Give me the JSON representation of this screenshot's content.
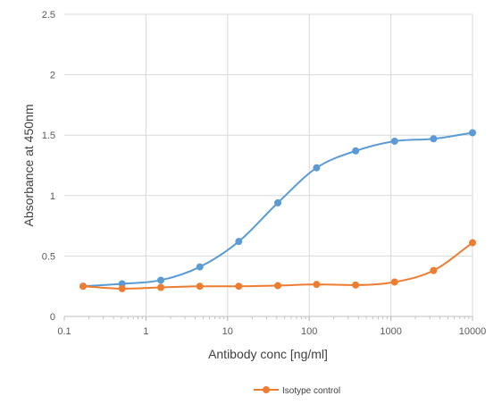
{
  "chart_data": {
    "type": "line",
    "xscale": "log",
    "xlim": [
      0.1,
      10000
    ],
    "ylim": [
      0,
      2.5
    ],
    "xlabel": "Antibody conc [ng/ml]",
    "ylabel": "Absorbance at 450nm",
    "x_ticks": [
      "0.1",
      "1",
      "10",
      "100",
      "1000",
      "10000"
    ],
    "y_ticks": [
      "0",
      "0.5",
      "1",
      "1.5",
      "2",
      "2.5"
    ],
    "grid": true,
    "legend_position": "bottom-center",
    "series": [
      {
        "color": "#5B9BD5",
        "x": [
          0.17,
          0.51,
          1.52,
          4.57,
          13.7,
          41.2,
          123,
          370,
          1111,
          3333,
          10000
        ],
        "y": [
          0.25,
          0.27,
          0.3,
          0.41,
          0.62,
          0.94,
          1.23,
          1.37,
          1.45,
          1.47,
          1.52
        ]
      },
      {
        "name": "Isotype control",
        "color": "#ED7D31",
        "x": [
          0.17,
          0.51,
          1.52,
          4.57,
          13.7,
          41.2,
          123,
          370,
          1111,
          3333,
          10000
        ],
        "y": [
          0.25,
          0.23,
          0.24,
          0.25,
          0.25,
          0.255,
          0.265,
          0.26,
          0.285,
          0.38,
          0.61
        ]
      }
    ]
  }
}
